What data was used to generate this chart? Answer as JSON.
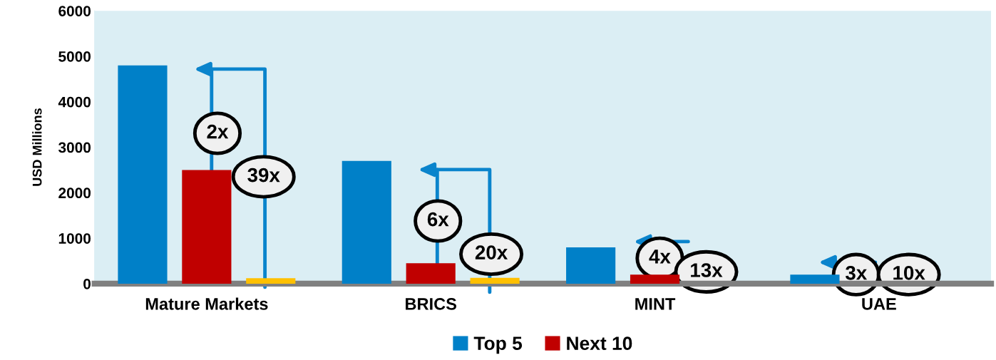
{
  "chart_data": {
    "type": "bar",
    "ylabel": "USD Millions",
    "categories": [
      "Mature Markets",
      "BRICS",
      "MINT",
      "UAE"
    ],
    "series": [
      {
        "name": "Top 5",
        "color": "#0080c8",
        "values": [
          4800,
          2700,
          800,
          200
        ]
      },
      {
        "name": "Next 10",
        "color": "#c00000",
        "values": [
          2500,
          450,
          200,
          null
        ]
      },
      {
        "color": "#ffc000",
        "values": [
          120,
          130,
          null,
          null
        ]
      }
    ],
    "ylim": [
      0,
      6000
    ],
    "yticks": [
      0,
      1000,
      2000,
      3000,
      4000,
      5000,
      6000
    ],
    "grid": false,
    "legend": "bottom",
    "annotations": [
      "2x",
      "39x",
      "6x",
      "20x",
      "4x",
      "13x",
      "3x",
      "10x"
    ]
  }
}
